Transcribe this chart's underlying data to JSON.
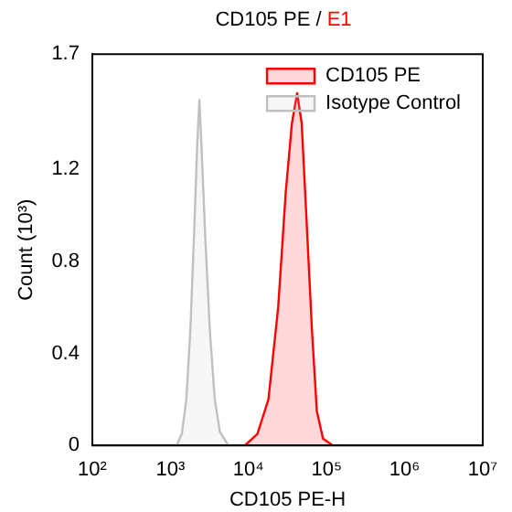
{
  "chart_data": {
    "type": "area",
    "title": "CD105 PE / E1",
    "xlabel": "CD105 PE-H",
    "ylabel": "Count (10³)",
    "log": "x",
    "xlim": [
      100,
      10000000
    ],
    "xticks": [
      {
        "value": 100,
        "label": "10²"
      },
      {
        "value": 1000,
        "label": "10³"
      },
      {
        "value": 10000,
        "label": "10⁴"
      },
      {
        "value": 100000,
        "label": "10⁵"
      },
      {
        "value": 1000000,
        "label": "10⁶"
      },
      {
        "value": 10000000,
        "label": "10⁷"
      }
    ],
    "ylim": [
      0,
      1.7
    ],
    "yticks": [
      0,
      0.4,
      0.8,
      1.2,
      1.7
    ],
    "grid": false,
    "legend": "top right",
    "series": [
      {
        "name": "CD105 PE",
        "color": "#ff0000",
        "x": [
          9000,
          13000,
          18000,
          24000,
          30000,
          36000,
          42000,
          48000,
          55000,
          65000,
          75000,
          90000,
          120000
        ],
        "values": [
          0,
          0.05,
          0.2,
          0.6,
          1.1,
          1.4,
          1.53,
          1.4,
          1.0,
          0.5,
          0.15,
          0.03,
          0
        ]
      },
      {
        "name": "Isotype Control",
        "color": "#c0c0c0",
        "x": [
          1200,
          1400,
          1600,
          1800,
          2000,
          2200,
          2350,
          2500,
          2800,
          3200,
          3700,
          4300,
          5500
        ],
        "values": [
          0,
          0.05,
          0.2,
          0.5,
          0.9,
          1.3,
          1.5,
          1.3,
          0.9,
          0.5,
          0.2,
          0.06,
          0
        ]
      }
    ]
  }
}
